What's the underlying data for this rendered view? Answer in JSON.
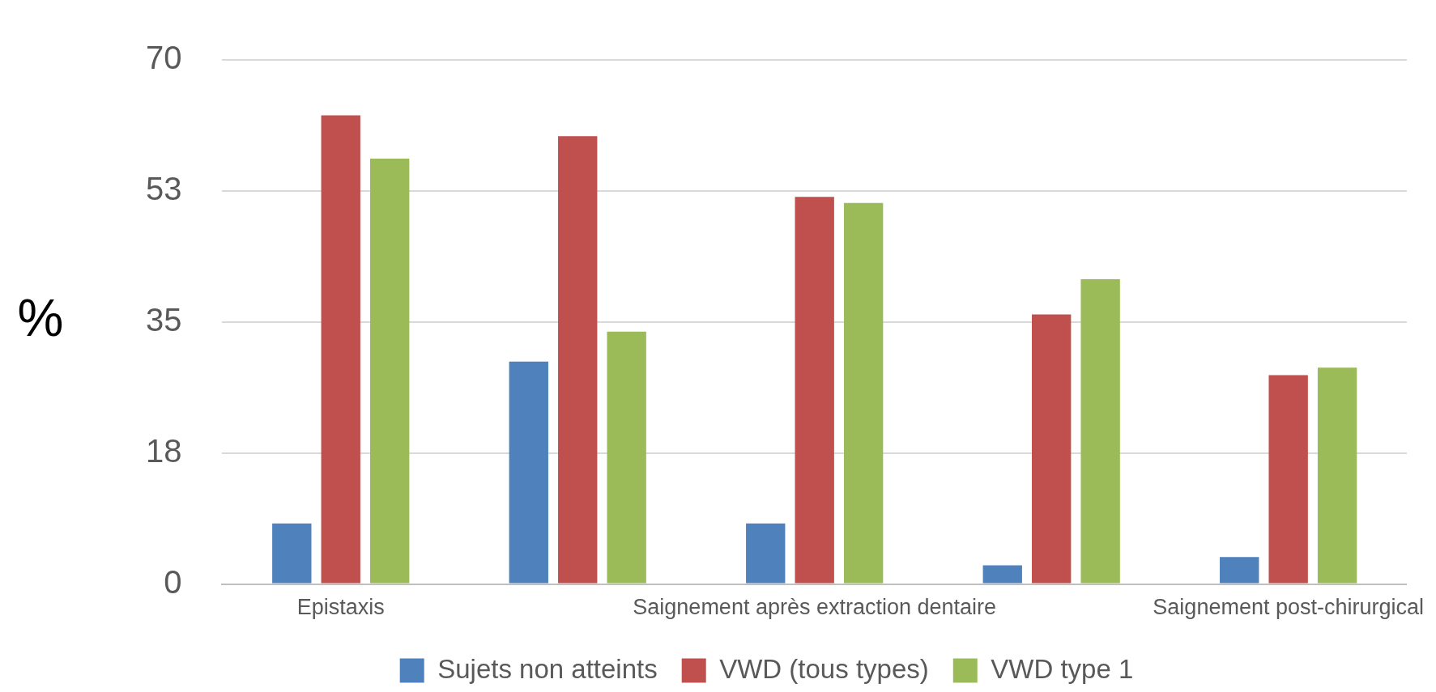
{
  "chart_data": {
    "type": "bar",
    "ylabel": "%",
    "categories": [
      "Epistaxis",
      null,
      "Saignement après extraction dentaire",
      null,
      "Saignement post-chirurgical"
    ],
    "series": [
      {
        "name": "Sujets non atteints",
        "color": "#4f81bd",
        "values": [
          8.1,
          29.7,
          8.1,
          2.5,
          3.6
        ]
      },
      {
        "name": "VWD (tous types)",
        "color": "#c0504d",
        "values": [
          62.6,
          59.8,
          51.7,
          36.0,
          27.9
        ]
      },
      {
        "name": "VWD type 1",
        "color": "#9bbb59",
        "values": [
          56.8,
          33.7,
          50.9,
          40.7,
          28.9
        ]
      }
    ],
    "ylim": [
      0,
      70
    ],
    "yticks": [
      0,
      {
        "value": 17.5,
        "label": "18"
      },
      35,
      {
        "value": 52.5,
        "label": "53"
      },
      70
    ],
    "grid": "y",
    "legend": "bottom"
  }
}
